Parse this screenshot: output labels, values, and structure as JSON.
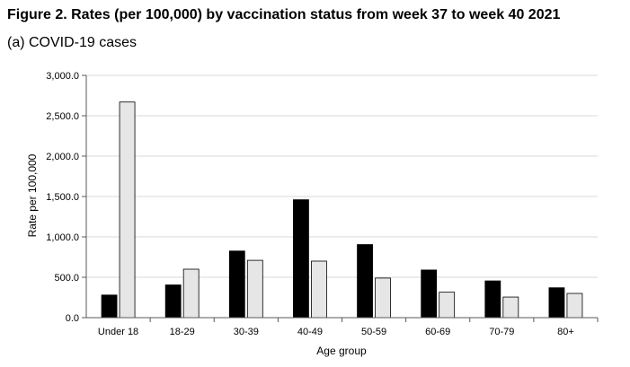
{
  "figure": {
    "title": "Figure 2. Rates (per 100,000) by vaccination status from week 37 to week 40 2021",
    "subtitle": "(a) COVID-19 cases"
  },
  "chart_data": {
    "type": "bar",
    "xlabel": "Age group",
    "ylabel": "Rate per 100,000",
    "ylim": [
      0,
      3000
    ],
    "yticks": [
      0,
      500,
      1000,
      1500,
      2000,
      2500,
      3000
    ],
    "ytick_labels": [
      "0.0",
      "500.0",
      "1,000.0",
      "1,500.0",
      "2,000.0",
      "2,500.0",
      "3,000.0"
    ],
    "categories": [
      "Under 18",
      "18-29",
      "30-39",
      "40-49",
      "50-59",
      "60-69",
      "70-79",
      "80+"
    ],
    "series": [
      {
        "color": "#000000",
        "values": [
          280,
          405,
          825,
          1460,
          905,
          590,
          455,
          370
        ]
      },
      {
        "color": "#e6e6e6",
        "values": [
          2670,
          600,
          710,
          700,
          490,
          315,
          255,
          300
        ]
      }
    ],
    "grid": true,
    "legend": "none"
  }
}
